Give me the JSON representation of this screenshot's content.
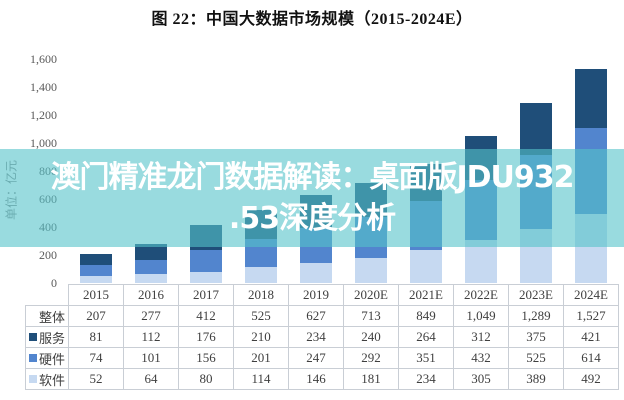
{
  "title": "图 22：中国大数据市场规模（2015-2024E）",
  "watermark": {
    "lines": [
      "澳门精准龙门数据解读：桌面版JDU932",
      ".53深度分析"
    ],
    "band_color": "rgba(85,195,201,0.6)",
    "text_color": "#ffffff"
  },
  "chart_data": {
    "type": "bar",
    "stacked": true,
    "title": "图 22：中国大数据市场规模（2015-2024E）",
    "unit_label": "单位：亿元",
    "categories": [
      "2015",
      "2016",
      "2017",
      "2018",
      "2019",
      "2020E",
      "2021E",
      "2022E",
      "2023E",
      "2024E"
    ],
    "series": [
      {
        "key": "software",
        "name": "软件",
        "color": "#C6D9F1",
        "values": [
          52,
          64,
          80,
          114,
          146,
          181,
          234,
          305,
          389,
          492
        ]
      },
      {
        "key": "hardware",
        "name": "硬件",
        "color": "#5285CE",
        "values": [
          74,
          101,
          156,
          201,
          247,
          292,
          351,
          432,
          525,
          614
        ]
      },
      {
        "key": "services",
        "name": "服务",
        "color": "#1F4E79",
        "values": [
          81,
          112,
          176,
          210,
          234,
          240,
          264,
          312,
          375,
          421
        ]
      }
    ],
    "total": {
      "name": "整体",
      "values": [
        207,
        277,
        412,
        525,
        627,
        713,
        849,
        1049,
        1289,
        1527
      ],
      "display": [
        "207",
        "277",
        "412",
        "525",
        "627",
        "713",
        "849",
        "1,049",
        "1,289",
        "1,527"
      ]
    },
    "ylim": [
      0,
      1600
    ],
    "ytick_labels": [
      "1,600",
      "1,400",
      "1,200",
      "1,000",
      "800",
      "600",
      "400",
      "200",
      "0"
    ],
    "grid": false,
    "legend_position": "table-row-labels"
  }
}
